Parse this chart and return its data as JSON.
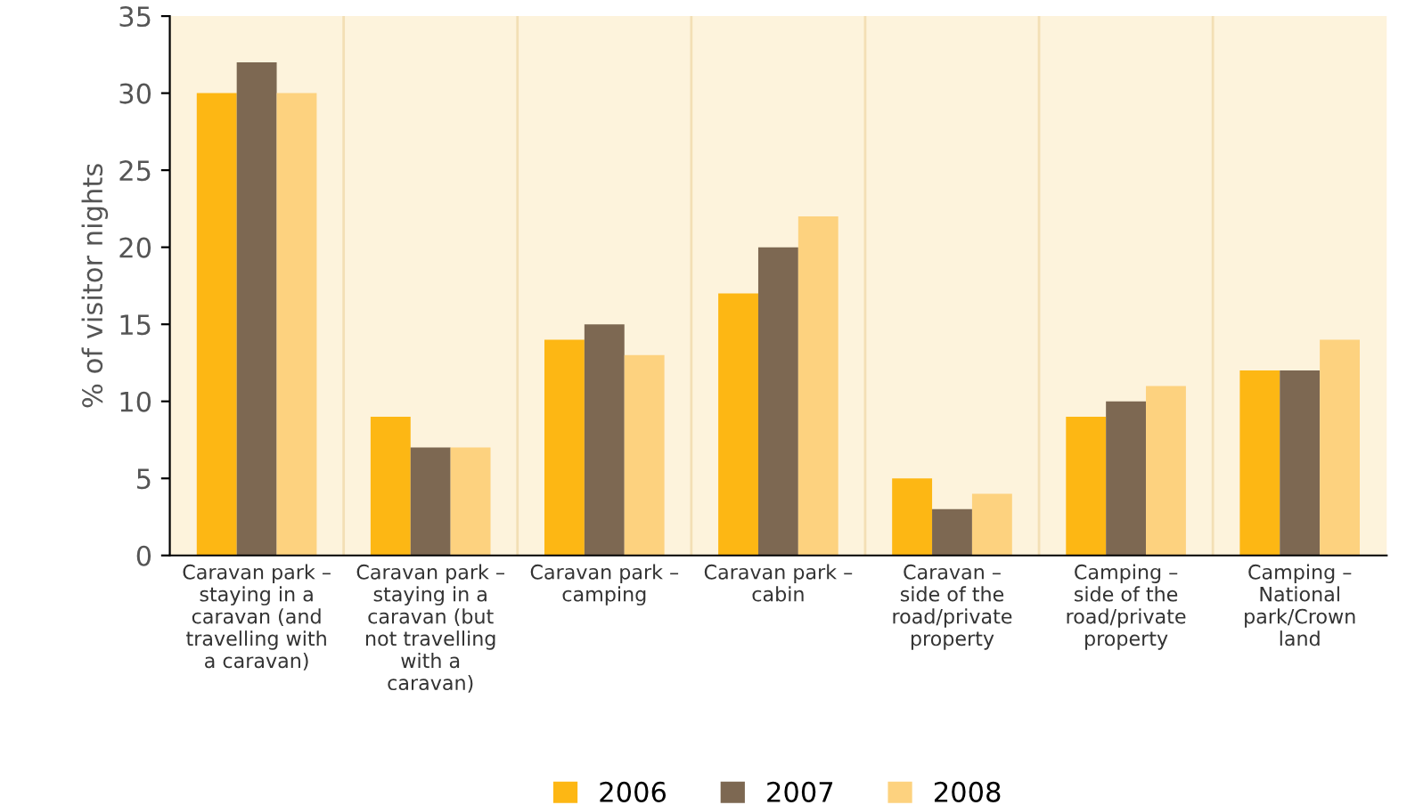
{
  "chart_data": {
    "type": "bar",
    "ylabel": "% of visitor nights",
    "categories": [
      "Caravan park –\nstaying in a\ncaravan (and\ntravelling with\na caravan)",
      "Caravan park –\nstaying in a\ncaravan (but\nnot travelling\nwith a\ncaravan)",
      "Caravan park –\ncamping",
      "Caravan park –\ncabin",
      "Caravan –\nside of the\nroad/private\nproperty",
      "Camping –\nside of the\nroad/private\nproperty",
      "Camping –\nNational\npark/Crown\nland"
    ],
    "series": [
      {
        "name": "2006",
        "color": "#fdb714",
        "values": [
          30,
          9,
          14,
          17,
          5,
          9,
          12
        ]
      },
      {
        "name": "2007",
        "color": "#7d6852",
        "values": [
          32,
          7,
          15,
          20,
          3,
          10,
          12
        ]
      },
      {
        "name": "2008",
        "color": "#fdd27f",
        "values": [
          30,
          7,
          13,
          22,
          4,
          11,
          14
        ]
      }
    ],
    "ylim": [
      0,
      35
    ],
    "yticks": [
      0,
      5,
      10,
      15,
      20,
      25,
      30,
      35
    ],
    "grid": false,
    "legend": "bottom"
  }
}
